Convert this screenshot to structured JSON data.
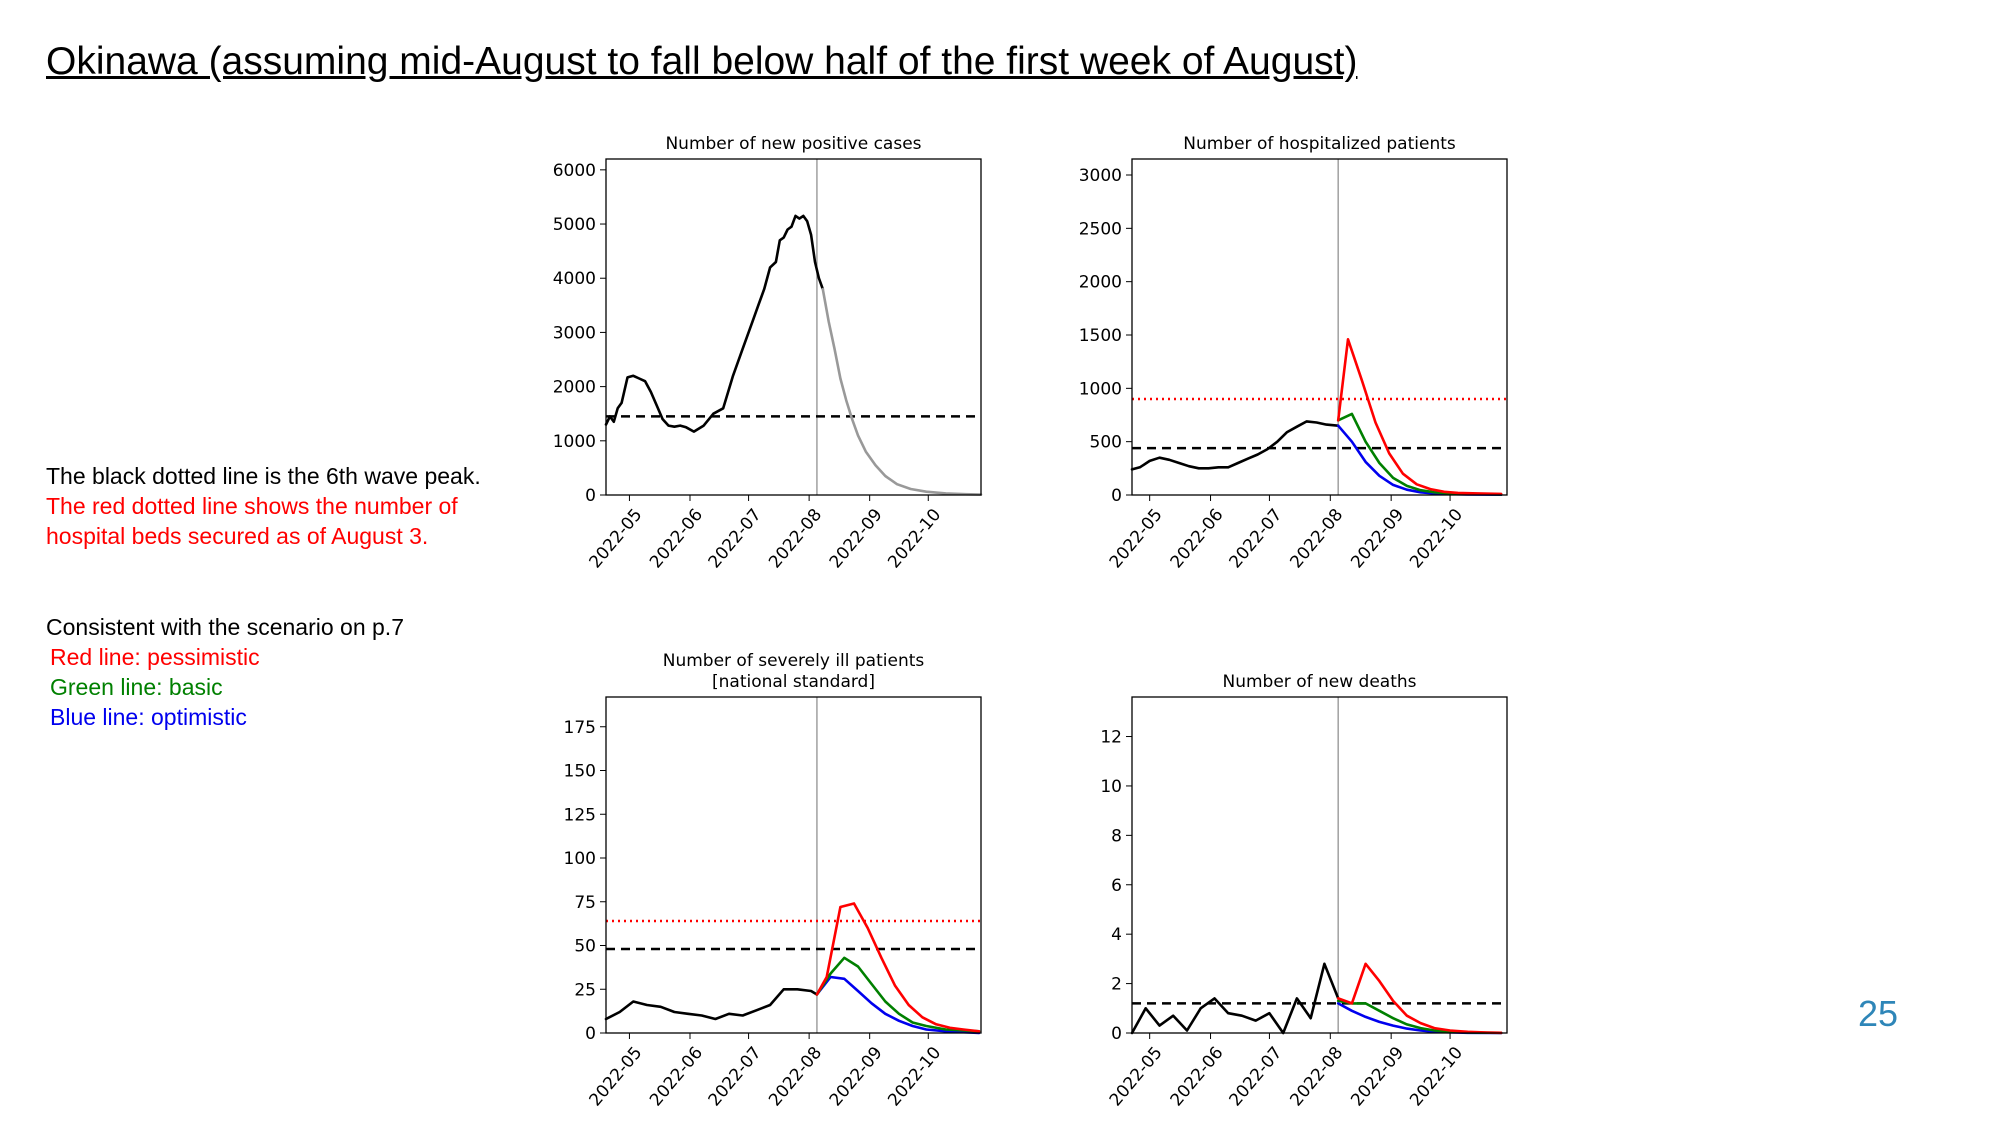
{
  "slide": {
    "title": "Okinawa (assuming mid-August to fall below half of the first week of August)",
    "page_number": "25"
  },
  "notes": {
    "peak_line": "The black dotted line is the 6th wave peak.",
    "beds_line_1": "The red dotted line shows the number of",
    "beds_line_2": "hospital beds secured as of August 3.",
    "scenario_intro": "Consistent with the scenario on p.7",
    "red_label": "Red line: pessimistic",
    "green_label": "Green line: basic",
    "blue_label": "Blue line: optimistic"
  },
  "colors": {
    "observed": "#000000",
    "projection": "#999999",
    "pessimistic": "#ff0000",
    "basic": "#008000",
    "optimistic": "#0000ee",
    "page_number": "#2e86b8"
  },
  "chart_data": [
    {
      "id": "cases",
      "type": "line",
      "title_lines": [
        "Number of new positive cases"
      ],
      "x_ticks": [
        "2022-05",
        "2022-06",
        "2022-07",
        "2022-08",
        "2022-09",
        "2022-10"
      ],
      "xlim": [
        "2022-04-19",
        "2022-10-28"
      ],
      "ylim": [
        0,
        6200
      ],
      "yticks": [
        0,
        1000,
        2000,
        3000,
        4000,
        5000,
        6000
      ],
      "vline_date": "2022-08-05",
      "peak_line": 1450,
      "bed_line": null,
      "series": [
        {
          "role": "observed",
          "color": "#000000",
          "x": [
            "2022-04-19",
            "2022-04-21",
            "2022-04-23",
            "2022-04-25",
            "2022-04-27",
            "2022-04-30",
            "2022-05-03",
            "2022-05-06",
            "2022-05-09",
            "2022-05-12",
            "2022-05-15",
            "2022-05-18",
            "2022-05-21",
            "2022-05-24",
            "2022-05-27",
            "2022-05-30",
            "2022-06-03",
            "2022-06-08",
            "2022-06-13",
            "2022-06-18",
            "2022-06-23",
            "2022-06-28",
            "2022-07-03",
            "2022-07-06",
            "2022-07-09",
            "2022-07-12",
            "2022-07-15",
            "2022-07-17",
            "2022-07-19",
            "2022-07-21",
            "2022-07-23",
            "2022-07-25",
            "2022-07-27",
            "2022-07-29",
            "2022-07-31",
            "2022-08-02",
            "2022-08-04",
            "2022-08-06",
            "2022-08-08"
          ],
          "y": [
            1300,
            1450,
            1350,
            1600,
            1700,
            2170,
            2200,
            2150,
            2100,
            1900,
            1650,
            1400,
            1280,
            1260,
            1280,
            1250,
            1170,
            1280,
            1500,
            1600,
            2200,
            2700,
            3200,
            3500,
            3800,
            4200,
            4300,
            4700,
            4750,
            4900,
            4950,
            5150,
            5100,
            5150,
            5050,
            4800,
            4300,
            4000,
            3800
          ]
        },
        {
          "role": "projection",
          "color": "#999999",
          "x": [
            "2022-08-08",
            "2022-08-11",
            "2022-08-14",
            "2022-08-17",
            "2022-08-20",
            "2022-08-23",
            "2022-08-26",
            "2022-08-30",
            "2022-09-04",
            "2022-09-09",
            "2022-09-15",
            "2022-09-22",
            "2022-09-30",
            "2022-10-10",
            "2022-10-20",
            "2022-10-28"
          ],
          "y": [
            3800,
            3200,
            2700,
            2150,
            1750,
            1400,
            1100,
            800,
            550,
            350,
            200,
            110,
            60,
            30,
            15,
            10
          ]
        }
      ]
    },
    {
      "id": "hospitalized",
      "type": "line",
      "title_lines": [
        "Number of hospitalized patients"
      ],
      "x_ticks": [
        "2022-05",
        "2022-06",
        "2022-07",
        "2022-08",
        "2022-09",
        "2022-10"
      ],
      "xlim": [
        "2022-04-22",
        "2022-10-30"
      ],
      "ylim": [
        0,
        3150
      ],
      "yticks": [
        0,
        500,
        1000,
        1500,
        2000,
        2500,
        3000
      ],
      "vline_date": "2022-08-05",
      "peak_line": 440,
      "bed_line": 900,
      "series": [
        {
          "role": "observed",
          "color": "#000000",
          "x": [
            "2022-04-22",
            "2022-04-26",
            "2022-05-01",
            "2022-05-06",
            "2022-05-11",
            "2022-05-16",
            "2022-05-21",
            "2022-05-26",
            "2022-05-31",
            "2022-06-05",
            "2022-06-10",
            "2022-06-15",
            "2022-06-20",
            "2022-06-25",
            "2022-06-30",
            "2022-07-05",
            "2022-07-10",
            "2022-07-15",
            "2022-07-20",
            "2022-07-25",
            "2022-07-30",
            "2022-08-05"
          ],
          "y": [
            240,
            260,
            320,
            350,
            330,
            300,
            270,
            250,
            250,
            260,
            260,
            300,
            340,
            380,
            430,
            500,
            590,
            640,
            690,
            680,
            660,
            650
          ]
        },
        {
          "role": "pessimistic",
          "color": "#ff0000",
          "x": [
            "2022-08-05",
            "2022-08-10",
            "2022-08-17",
            "2022-08-24",
            "2022-08-31",
            "2022-09-07",
            "2022-09-14",
            "2022-09-21",
            "2022-09-28",
            "2022-10-05",
            "2022-10-15",
            "2022-10-27"
          ],
          "y": [
            700,
            1460,
            1080,
            680,
            390,
            200,
            100,
            55,
            30,
            20,
            15,
            10
          ]
        },
        {
          "role": "basic",
          "color": "#008000",
          "x": [
            "2022-08-05",
            "2022-08-12",
            "2022-08-19",
            "2022-08-26",
            "2022-09-02",
            "2022-09-09",
            "2022-09-16",
            "2022-09-23",
            "2022-10-01",
            "2022-10-10",
            "2022-10-27"
          ],
          "y": [
            700,
            760,
            500,
            300,
            160,
            85,
            45,
            25,
            15,
            10,
            5
          ]
        },
        {
          "role": "optimistic",
          "color": "#0000ee",
          "x": [
            "2022-08-05",
            "2022-08-12",
            "2022-08-19",
            "2022-08-26",
            "2022-09-02",
            "2022-09-09",
            "2022-09-16",
            "2022-09-23",
            "2022-10-01",
            "2022-10-10",
            "2022-10-27"
          ],
          "y": [
            650,
            500,
            310,
            180,
            95,
            50,
            25,
            15,
            8,
            5,
            3
          ]
        }
      ]
    },
    {
      "id": "severe",
      "type": "line",
      "title_lines": [
        "Number of severely ill patients",
        "[national standard]"
      ],
      "x_ticks": [
        "2022-05",
        "2022-06",
        "2022-07",
        "2022-08",
        "2022-09",
        "2022-10"
      ],
      "xlim": [
        "2022-04-19",
        "2022-10-28"
      ],
      "ylim": [
        0,
        192
      ],
      "yticks": [
        0,
        25,
        50,
        75,
        100,
        125,
        150,
        175
      ],
      "vline_date": "2022-08-05",
      "peak_line": 48,
      "bed_line": 64,
      "series": [
        {
          "role": "observed",
          "color": "#000000",
          "x": [
            "2022-04-19",
            "2022-04-26",
            "2022-05-03",
            "2022-05-10",
            "2022-05-17",
            "2022-05-24",
            "2022-05-31",
            "2022-06-07",
            "2022-06-14",
            "2022-06-21",
            "2022-06-28",
            "2022-07-05",
            "2022-07-12",
            "2022-07-19",
            "2022-07-26",
            "2022-08-02",
            "2022-08-05"
          ],
          "y": [
            8,
            12,
            18,
            16,
            15,
            12,
            11,
            10,
            8,
            11,
            10,
            13,
            16,
            25,
            25,
            24,
            22
          ]
        },
        {
          "role": "pessimistic",
          "color": "#ff0000",
          "x": [
            "2022-08-05",
            "2022-08-10",
            "2022-08-17",
            "2022-08-24",
            "2022-08-31",
            "2022-09-07",
            "2022-09-14",
            "2022-09-21",
            "2022-09-28",
            "2022-10-05",
            "2022-10-12",
            "2022-10-19",
            "2022-10-27"
          ],
          "y": [
            22,
            32,
            72,
            74,
            60,
            43,
            27,
            16,
            9,
            5,
            3,
            2,
            1
          ]
        },
        {
          "role": "basic",
          "color": "#008000",
          "x": [
            "2022-08-05",
            "2022-08-12",
            "2022-08-19",
            "2022-08-26",
            "2022-09-02",
            "2022-09-09",
            "2022-09-16",
            "2022-09-23",
            "2022-09-30",
            "2022-10-10",
            "2022-10-27"
          ],
          "y": [
            22,
            34,
            43,
            38,
            28,
            18,
            11,
            6,
            4,
            2,
            1
          ]
        },
        {
          "role": "optimistic",
          "color": "#0000ee",
          "x": [
            "2022-08-05",
            "2022-08-12",
            "2022-08-19",
            "2022-08-26",
            "2022-09-02",
            "2022-09-09",
            "2022-09-16",
            "2022-09-23",
            "2022-09-30",
            "2022-10-10",
            "2022-10-27"
          ],
          "y": [
            22,
            32,
            31,
            24,
            17,
            11,
            7,
            4,
            2,
            1,
            0
          ]
        }
      ]
    },
    {
      "id": "deaths",
      "type": "line",
      "title_lines": [
        "Number of new deaths"
      ],
      "x_ticks": [
        "2022-05",
        "2022-06",
        "2022-07",
        "2022-08",
        "2022-09",
        "2022-10"
      ],
      "xlim": [
        "2022-04-22",
        "2022-10-30"
      ],
      "ylim": [
        0,
        13.6
      ],
      "yticks": [
        0,
        2,
        4,
        6,
        8,
        10,
        12
      ],
      "vline_date": "2022-08-05",
      "peak_line": 1.2,
      "bed_line": null,
      "series": [
        {
          "role": "observed",
          "color": "#000000",
          "x": [
            "2022-04-22",
            "2022-04-29",
            "2022-05-06",
            "2022-05-13",
            "2022-05-20",
            "2022-05-27",
            "2022-06-03",
            "2022-06-10",
            "2022-06-17",
            "2022-06-24",
            "2022-07-01",
            "2022-07-08",
            "2022-07-15",
            "2022-07-22",
            "2022-07-29",
            "2022-08-05"
          ],
          "y": [
            0,
            1,
            0.3,
            0.7,
            0.1,
            1,
            1.4,
            0.8,
            0.7,
            0.5,
            0.8,
            0,
            1.4,
            0.6,
            2.8,
            1.4
          ]
        },
        {
          "role": "pessimistic",
          "color": "#ff0000",
          "x": [
            "2022-08-05",
            "2022-08-12",
            "2022-08-19",
            "2022-08-26",
            "2022-09-02",
            "2022-09-09",
            "2022-09-16",
            "2022-09-23",
            "2022-10-01",
            "2022-10-10",
            "2022-10-20",
            "2022-10-27"
          ],
          "y": [
            1.4,
            1.2,
            2.8,
            2.1,
            1.3,
            0.7,
            0.4,
            0.2,
            0.1,
            0.05,
            0.02,
            0.01
          ]
        },
        {
          "role": "basic",
          "color": "#008000",
          "x": [
            "2022-08-05",
            "2022-08-12",
            "2022-08-19",
            "2022-08-26",
            "2022-09-02",
            "2022-09-09",
            "2022-09-16",
            "2022-09-23",
            "2022-10-01",
            "2022-10-10",
            "2022-10-27"
          ],
          "y": [
            1.3,
            1.2,
            1.2,
            0.9,
            0.6,
            0.35,
            0.2,
            0.1,
            0.05,
            0.02,
            0.01
          ]
        },
        {
          "role": "optimistic",
          "color": "#0000ee",
          "x": [
            "2022-08-05",
            "2022-08-12",
            "2022-08-19",
            "2022-08-26",
            "2022-09-02",
            "2022-09-09",
            "2022-09-16",
            "2022-09-23",
            "2022-10-01",
            "2022-10-10",
            "2022-10-27"
          ],
          "y": [
            1.2,
            0.9,
            0.65,
            0.45,
            0.3,
            0.18,
            0.1,
            0.05,
            0.03,
            0.01,
            0
          ]
        }
      ]
    }
  ]
}
